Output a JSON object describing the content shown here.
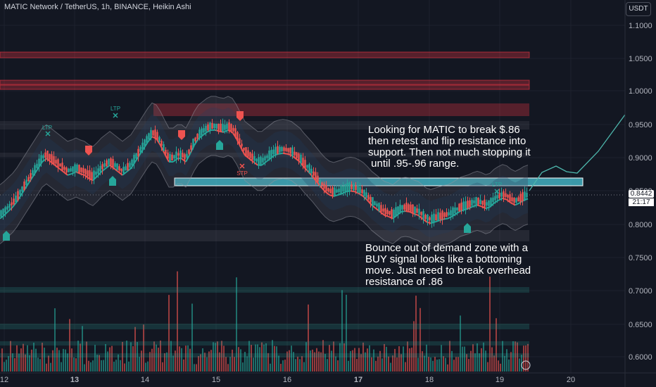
{
  "header": {
    "title": "MATIC Network / TetherUS, 1h, BINANCE, Heikin Ashi",
    "currency_button": "USDT"
  },
  "price_axis": {
    "labels": [
      "1.1000",
      "1.0500",
      "1.0000",
      "0.9500",
      "0.9000",
      "0.8500",
      "0.8000",
      "0.7500",
      "0.7000",
      "0.6500",
      "0.6000"
    ],
    "values": [
      1.1,
      1.05,
      1.0,
      0.95,
      0.9,
      0.85,
      0.8,
      0.75,
      0.7,
      0.65,
      0.6
    ],
    "current_price": "0.8442",
    "countdown": "21:17"
  },
  "time_axis": {
    "labels": [
      "12",
      "13",
      "14",
      "15",
      "16",
      "17",
      "18",
      "19",
      "20"
    ],
    "bold": [
      "13",
      "17"
    ]
  },
  "annotations": {
    "top": [
      "Looking for MATIC to break $.86",
      "then retest and flip resistance into",
      "support. Then not much stopping it",
      " until .95-.96 range."
    ],
    "bottom": [
      "Bounce out of demand zone with a",
      "BUY signal looks like a bottoming",
      "move. Just need to break overhead",
      "resistance of .86"
    ]
  },
  "markers": {
    "ltp": "LTP",
    "stp": "STP"
  },
  "colors": {
    "background": "#131722",
    "up": "#26a69a",
    "down": "#ef5350",
    "resistance_zone": "#f23645",
    "highlight_zone": "#4dd0e1",
    "projection": "#4db6ac"
  },
  "chart_data": {
    "type": "candlestick",
    "style": "Heikin Ashi",
    "symbol": "MATIC/USDT",
    "interval": "1h",
    "ylim": [
      0.595,
      1.115
    ],
    "x_ticks": [
      "12",
      "13",
      "14",
      "15",
      "16",
      "17",
      "18",
      "19",
      "20"
    ],
    "close_path": [
      [
        0,
        0.815
      ],
      [
        6,
        0.82
      ],
      [
        12,
        0.826
      ],
      [
        18,
        0.832
      ],
      [
        24,
        0.84
      ],
      [
        30,
        0.85
      ],
      [
        36,
        0.86
      ],
      [
        42,
        0.87
      ],
      [
        48,
        0.88
      ],
      [
        54,
        0.89
      ],
      [
        60,
        0.9
      ],
      [
        66,
        0.905
      ],
      [
        72,
        0.9
      ],
      [
        78,
        0.895
      ],
      [
        84,
        0.89
      ],
      [
        90,
        0.885
      ],
      [
        96,
        0.88
      ],
      [
        102,
        0.882
      ],
      [
        108,
        0.885
      ],
      [
        114,
        0.882
      ],
      [
        120,
        0.88
      ],
      [
        126,
        0.875
      ],
      [
        132,
        0.872
      ],
      [
        138,
        0.878
      ],
      [
        144,
        0.885
      ],
      [
        150,
        0.89
      ],
      [
        156,
        0.895
      ],
      [
        162,
        0.89
      ],
      [
        168,
        0.885
      ],
      [
        174,
        0.88
      ],
      [
        180,
        0.885
      ],
      [
        186,
        0.89
      ],
      [
        192,
        0.9
      ],
      [
        198,
        0.91
      ],
      [
        204,
        0.92
      ],
      [
        210,
        0.93
      ],
      [
        216,
        0.938
      ],
      [
        222,
        0.935
      ],
      [
        228,
        0.925
      ],
      [
        234,
        0.912
      ],
      [
        240,
        0.9
      ],
      [
        246,
        0.9
      ],
      [
        252,
        0.905
      ],
      [
        258,
        0.905
      ],
      [
        264,
        0.9
      ],
      [
        270,
        0.912
      ],
      [
        276,
        0.925
      ],
      [
        282,
        0.935
      ],
      [
        288,
        0.94
      ],
      [
        294,
        0.945
      ],
      [
        300,
        0.948
      ],
      [
        306,
        0.948
      ],
      [
        312,
        0.946
      ],
      [
        318,
        0.945
      ],
      [
        324,
        0.948
      ],
      [
        330,
        0.945
      ],
      [
        336,
        0.935
      ],
      [
        342,
        0.922
      ],
      [
        348,
        0.91
      ],
      [
        354,
        0.905
      ],
      [
        360,
        0.9
      ],
      [
        366,
        0.895
      ],
      [
        372,
        0.895
      ],
      [
        378,
        0.9
      ],
      [
        384,
        0.905
      ],
      [
        390,
        0.91
      ],
      [
        396,
        0.912
      ],
      [
        402,
        0.913
      ],
      [
        408,
        0.912
      ],
      [
        414,
        0.91
      ],
      [
        420,
        0.905
      ],
      [
        426,
        0.9
      ],
      [
        432,
        0.892
      ],
      [
        438,
        0.885
      ],
      [
        444,
        0.878
      ],
      [
        450,
        0.87
      ],
      [
        456,
        0.862
      ],
      [
        462,
        0.855
      ],
      [
        468,
        0.85
      ],
      [
        474,
        0.848
      ],
      [
        480,
        0.85
      ],
      [
        486,
        0.852
      ],
      [
        492,
        0.855
      ],
      [
        498,
        0.856
      ],
      [
        504,
        0.855
      ],
      [
        510,
        0.852
      ],
      [
        516,
        0.848
      ],
      [
        522,
        0.842
      ],
      [
        528,
        0.835
      ],
      [
        534,
        0.83
      ],
      [
        540,
        0.825
      ],
      [
        546,
        0.82
      ],
      [
        552,
        0.818
      ],
      [
        558,
        0.815
      ],
      [
        564,
        0.82
      ],
      [
        570,
        0.825
      ],
      [
        576,
        0.826
      ],
      [
        582,
        0.825
      ],
      [
        588,
        0.822
      ],
      [
        594,
        0.82
      ],
      [
        600,
        0.815
      ],
      [
        606,
        0.81
      ],
      [
        612,
        0.808
      ],
      [
        618,
        0.81
      ],
      [
        624,
        0.812
      ],
      [
        630,
        0.814
      ],
      [
        636,
        0.815
      ],
      [
        642,
        0.818
      ],
      [
        648,
        0.822
      ],
      [
        654,
        0.826
      ],
      [
        660,
        0.828
      ],
      [
        666,
        0.83
      ],
      [
        672,
        0.833
      ],
      [
        678,
        0.835
      ],
      [
        684,
        0.833
      ],
      [
        690,
        0.83
      ],
      [
        696,
        0.832
      ],
      [
        702,
        0.838
      ],
      [
        708,
        0.842
      ],
      [
        714,
        0.845
      ],
      [
        720,
        0.843
      ],
      [
        726,
        0.838
      ],
      [
        732,
        0.835
      ],
      [
        738,
        0.838
      ],
      [
        744,
        0.842
      ],
      [
        750,
        0.8442
      ]
    ],
    "price_scale": "log-like, 1h bars"
  }
}
